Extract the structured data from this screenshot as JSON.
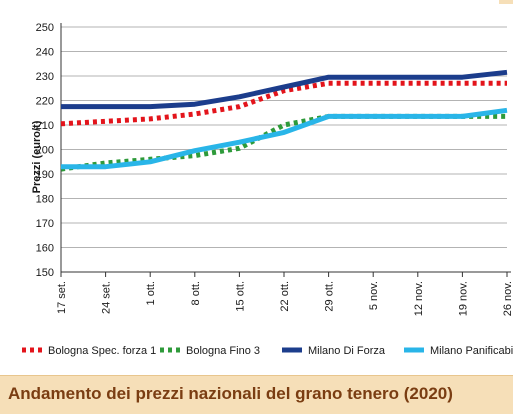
{
  "caption": "Andamento dei prezzi nazionali del grano tenero (2020)",
  "chart_data": {
    "type": "line",
    "title": "",
    "xlabel": "",
    "ylabel": "Prezzi (euro/t)",
    "ylim": [
      150,
      250
    ],
    "yticks": [
      150,
      160,
      170,
      180,
      190,
      200,
      210,
      220,
      230,
      240,
      250
    ],
    "grid": "horizontal",
    "legend_position": "bottom",
    "x": [
      "17 set.",
      "24 set.",
      "1 ott.",
      "8 ott.",
      "15 ott.",
      "22 ott.",
      "29 ott.",
      "5 nov.",
      "12 nov.",
      "19 nov.",
      "26 nov."
    ],
    "series": [
      {
        "name": "Bologna Spec. forza 1",
        "color": "#e3141b",
        "style": "dotted",
        "values": [
          210.5,
          211.5,
          212.5,
          214.5,
          217.5,
          224,
          227,
          227,
          227,
          227,
          227
        ]
      },
      {
        "name": "Bologna Fino 3",
        "color": "#2e9a3a",
        "style": "dotted",
        "values": [
          192,
          194.5,
          196,
          197.5,
          200.5,
          210,
          213.5,
          213.5,
          213.5,
          213.5,
          213.5
        ]
      },
      {
        "name": "Milano Di Forza",
        "color": "#1c3d8c",
        "style": "solid",
        "values": [
          217.5,
          217.5,
          217.5,
          218.5,
          221.5,
          225.5,
          229.5,
          229.5,
          229.5,
          229.5,
          231.5
        ]
      },
      {
        "name": "Milano Panificabile",
        "color": "#29b5e8",
        "style": "solid",
        "values": [
          193,
          193,
          195,
          199.5,
          203,
          207,
          213.5,
          213.5,
          213.5,
          213.5,
          216
        ]
      }
    ]
  }
}
